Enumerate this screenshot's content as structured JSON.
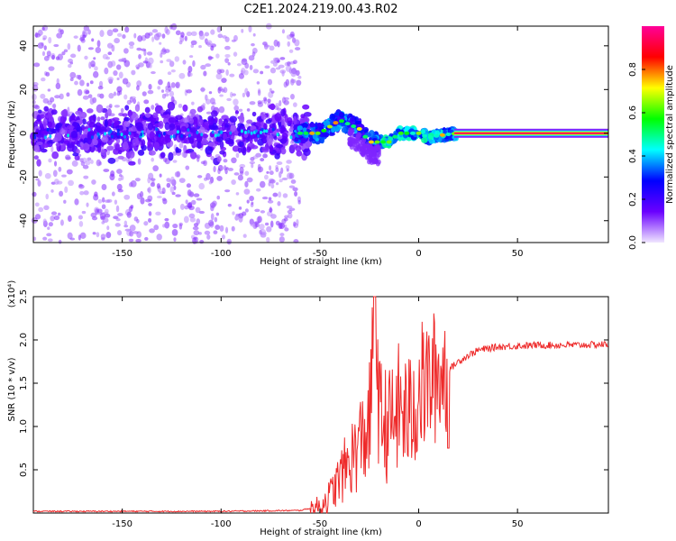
{
  "title": "C2E1.2024.219.00.43.R02",
  "chart_data": [
    {
      "type": "heatmap",
      "xlabel": "Height of straight line (km)",
      "ylabel": "Frequency (Hz)",
      "xlim": [
        -195,
        96
      ],
      "ylim": [
        -50,
        49
      ],
      "x_ticks": [
        -150,
        -100,
        -50,
        0,
        50
      ],
      "y_ticks": [
        -40,
        -20,
        0,
        20,
        40
      ],
      "colorbar": {
        "label": "Normalized spectral amplitude",
        "range": [
          0,
          1
        ],
        "ticks": [
          "0.0",
          "0.2",
          "0.4",
          "0.6",
          "0.8"
        ],
        "colormap": [
          "#f0e6ff",
          "#6a00ff",
          "#0000ff",
          "#00ffff",
          "#00ff00",
          "#ffff00",
          "#ff0000",
          "#ff0099"
        ]
      },
      "trace_center_hz": [
        {
          "x": -60,
          "y": 0
        },
        {
          "x": -50,
          "y": 0
        },
        {
          "x": -40,
          "y": 6
        },
        {
          "x": -30,
          "y": 2
        },
        {
          "x": -25,
          "y": -4
        },
        {
          "x": -15,
          "y": -4
        },
        {
          "x": -10,
          "y": 0
        },
        {
          "x": 0,
          "y": 0
        },
        {
          "x": 5,
          "y": -2
        },
        {
          "x": 10,
          "y": -1
        },
        {
          "x": 20,
          "y": 0
        },
        {
          "x": 95,
          "y": 0
        }
      ]
    },
    {
      "type": "line",
      "xlabel": "Height of straight line (km)",
      "ylabel": "SNR (10 * v/v)",
      "y_multiplier": "(x10⁴)",
      "xlim": [
        -195,
        96
      ],
      "ylim": [
        0,
        2.5
      ],
      "x_ticks": [
        -150,
        -100,
        -50,
        0,
        50
      ],
      "y_ticks": [
        "0.5",
        "1.0",
        "1.5",
        "2.0",
        "2.5"
      ],
      "series": [
        {
          "color": "#ee2a2a",
          "points": [
            {
              "x": -195,
              "y": 0.02
            },
            {
              "x": -100,
              "y": 0.02
            },
            {
              "x": -60,
              "y": 0.03
            },
            {
              "x": -50,
              "y": 0.08
            },
            {
              "x": -45,
              "y": 0.2
            },
            {
              "x": -40,
              "y": 0.4
            },
            {
              "x": -35,
              "y": 0.6
            },
            {
              "x": -30,
              "y": 0.8
            },
            {
              "x": -25,
              "y": 1.0
            },
            {
              "x": -22,
              "y": 2.5
            },
            {
              "x": -20,
              "y": 1.1
            },
            {
              "x": -15,
              "y": 1.0
            },
            {
              "x": -10,
              "y": 1.2
            },
            {
              "x": -5,
              "y": 1.1
            },
            {
              "x": 0,
              "y": 1.4
            },
            {
              "x": 5,
              "y": 1.5
            },
            {
              "x": 10,
              "y": 1.6
            },
            {
              "x": 15,
              "y": 1.65
            },
            {
              "x": 20,
              "y": 1.75
            },
            {
              "x": 25,
              "y": 1.82
            },
            {
              "x": 30,
              "y": 1.88
            },
            {
              "x": 40,
              "y": 1.92
            },
            {
              "x": 60,
              "y": 1.94
            },
            {
              "x": 80,
              "y": 1.94
            },
            {
              "x": 96,
              "y": 1.95
            }
          ]
        }
      ]
    }
  ]
}
